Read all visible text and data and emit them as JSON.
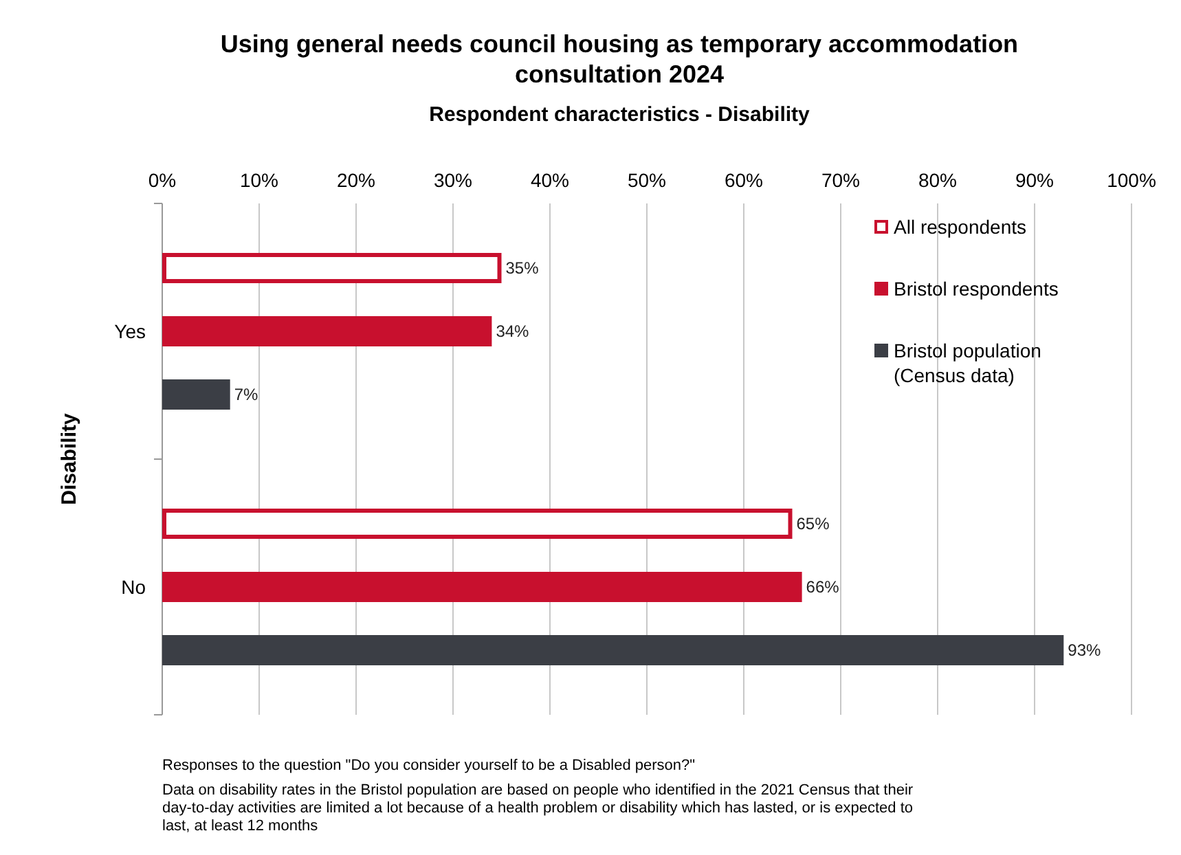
{
  "chart_data": {
    "type": "bar",
    "orientation": "horizontal",
    "title": "Using general needs council housing as temporary accommodation consultation 2024",
    "subtitle": "Respondent characteristics - Disability",
    "ylabel": "Disability",
    "categories": [
      "Yes",
      "No"
    ],
    "series": [
      {
        "name": "All respondents",
        "color": "#c8102e",
        "values": [
          35,
          65
        ],
        "value_labels": [
          "35%",
          "65%"
        ]
      },
      {
        "name": "Bristol respondents",
        "color": "#c8102e",
        "values": [
          34,
          66
        ],
        "value_labels": [
          "34%",
          "66%"
        ]
      },
      {
        "name": "Bristol population (Census data)",
        "color": "#3b3e45",
        "values": [
          7,
          93
        ],
        "value_labels": [
          "7%",
          "93%"
        ]
      }
    ],
    "xlim": [
      0,
      100
    ],
    "xticks": [
      {
        "value": 0,
        "label": "0%"
      },
      {
        "value": 10,
        "label": "10%"
      },
      {
        "value": 20,
        "label": "20%"
      },
      {
        "value": 30,
        "label": "30%"
      },
      {
        "value": 40,
        "label": "40%"
      },
      {
        "value": 50,
        "label": "50%"
      },
      {
        "value": 60,
        "label": "60%"
      },
      {
        "value": 70,
        "label": "70%"
      },
      {
        "value": 80,
        "label": "80%"
      },
      {
        "value": 90,
        "label": "90%"
      },
      {
        "value": 100,
        "label": "100%"
      }
    ],
    "grid": "x",
    "legend": "top right",
    "annotations": [
      "Responses to the question \"Do you consider yourself to be a Disabled person?\"",
      "Data on disability rates in the Bristol population are based on people who identified in the 2021 Census that their day-to-day activities are limited a lot because of a health problem or disability which has lasted, or is expected to last, at least 12 months"
    ]
  }
}
